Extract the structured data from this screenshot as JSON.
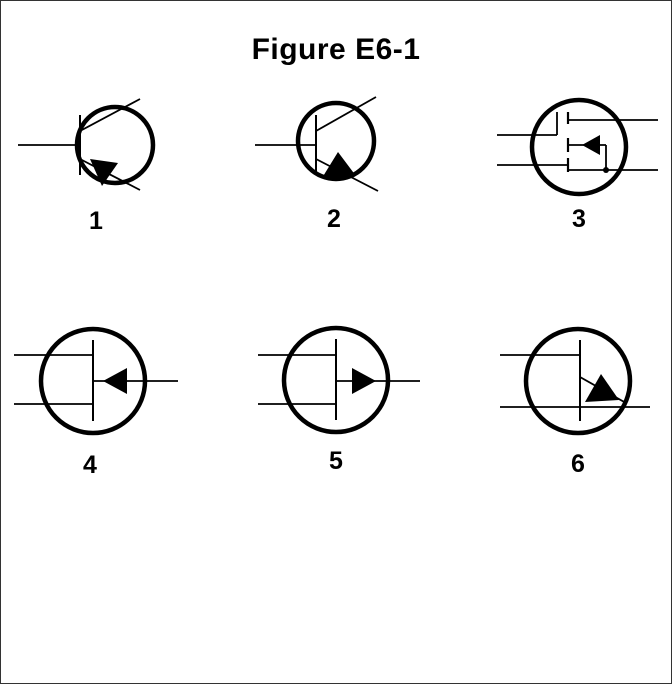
{
  "figure": {
    "title": "Figure E6-1"
  },
  "symbols": [
    {
      "label": "1",
      "kind": "bjt-npn"
    },
    {
      "label": "2",
      "kind": "bjt-pnp"
    },
    {
      "label": "3",
      "kind": "mosfet-enhancement"
    },
    {
      "label": "4",
      "kind": "jfet-n-channel"
    },
    {
      "label": "5",
      "kind": "jfet-p-channel"
    },
    {
      "label": "6",
      "kind": "unijunction-transistor"
    }
  ],
  "colors": {
    "line": "#000000",
    "background": "#ffffff"
  }
}
